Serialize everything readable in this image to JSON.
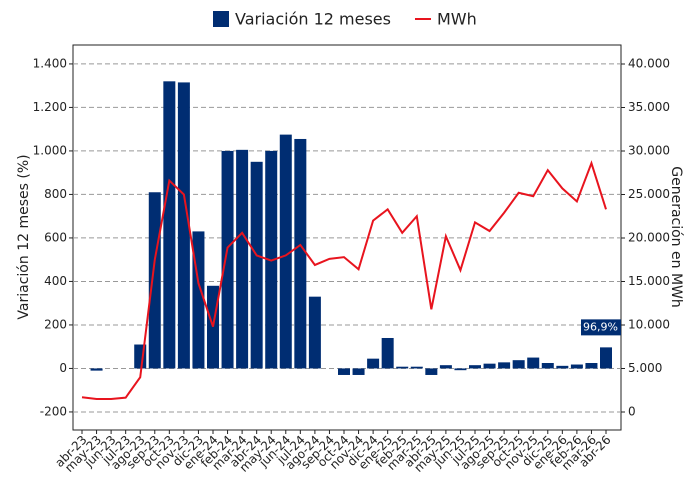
{
  "chart_data": {
    "type": "bar-line",
    "legend": "top",
    "grid": true,
    "ylabel": "Variación 12 meses (%)",
    "y2label": "Generación en MWh",
    "categories": [
      "abr-23",
      "may-23",
      "jun-23",
      "jul-23",
      "ago-23",
      "sep-23",
      "oct-23",
      "nov-23",
      "dic-23",
      "ene-24",
      "feb-24",
      "mar-24",
      "abr-24",
      "may-24",
      "jun-24",
      "jul-24",
      "ago-24",
      "sep-24",
      "oct-24",
      "nov-24",
      "dic-24",
      "ene-25",
      "feb-25",
      "mar-25",
      "abr-25",
      "may-25",
      "jun-25",
      "jul-25",
      "ago-25",
      "sep-25",
      "oct-25",
      "nov-25",
      "dic-25",
      "ene-26",
      "feb-26",
      "mar-26",
      "abr-26"
    ],
    "ylim": [
      -283,
      1487
    ],
    "yticks": [
      {
        "value": 1400,
        "label": "1.400"
      },
      {
        "value": 1200,
        "label": "1.200"
      },
      {
        "value": 1000,
        "label": "1.000"
      },
      800,
      600,
      400,
      200,
      0,
      -200
    ],
    "y2lim": [
      -2069,
      42184
    ],
    "y2ticks": [
      {
        "value": 40000,
        "label": "40.000"
      },
      {
        "value": 35000,
        "label": "35.000"
      },
      {
        "value": 30000,
        "label": "30.000"
      },
      {
        "value": 25000,
        "label": "25.000"
      },
      {
        "value": 20000,
        "label": "20.000"
      },
      {
        "value": 15000,
        "label": "15.000"
      },
      {
        "value": 10000,
        "label": "10.000"
      },
      {
        "value": 5000,
        "label": "5.000"
      },
      0
    ],
    "series": [
      {
        "name": "Variación 12 meses",
        "type": "bar",
        "color": "#002d72",
        "values": [
          null,
          -10,
          0,
          0,
          110,
          810,
          1320,
          1315,
          630,
          380,
          1000,
          1005,
          950,
          1000,
          1075,
          1055,
          330,
          null,
          -30,
          -30,
          45,
          140,
          8,
          8,
          -30,
          15,
          -8,
          15,
          22,
          28,
          38,
          50,
          25,
          12,
          18,
          25,
          96.9
        ],
        "value_labels": [
          null,
          null,
          null,
          null,
          null,
          null,
          null,
          null,
          null,
          null,
          null,
          null,
          null,
          null,
          null,
          null,
          null,
          null,
          null,
          null,
          null,
          null,
          null,
          null,
          null,
          null,
          null,
          null,
          null,
          null,
          null,
          null,
          null,
          null,
          null,
          null,
          "96,9%"
        ]
      },
      {
        "name": "MWh",
        "type": "line",
        "axis": "y2",
        "color": "#e8141e",
        "values": [
          1700,
          1500,
          1500,
          1650,
          4000,
          17500,
          26600,
          25000,
          14800,
          9800,
          18900,
          20600,
          18000,
          17400,
          18000,
          19200,
          16900,
          17600,
          17800,
          16400,
          22000,
          23300,
          20600,
          22500,
          11800,
          20200,
          16300,
          21800,
          20800,
          22900,
          25200,
          24800,
          27800,
          25700,
          24200,
          28600,
          23300
        ]
      }
    ]
  }
}
